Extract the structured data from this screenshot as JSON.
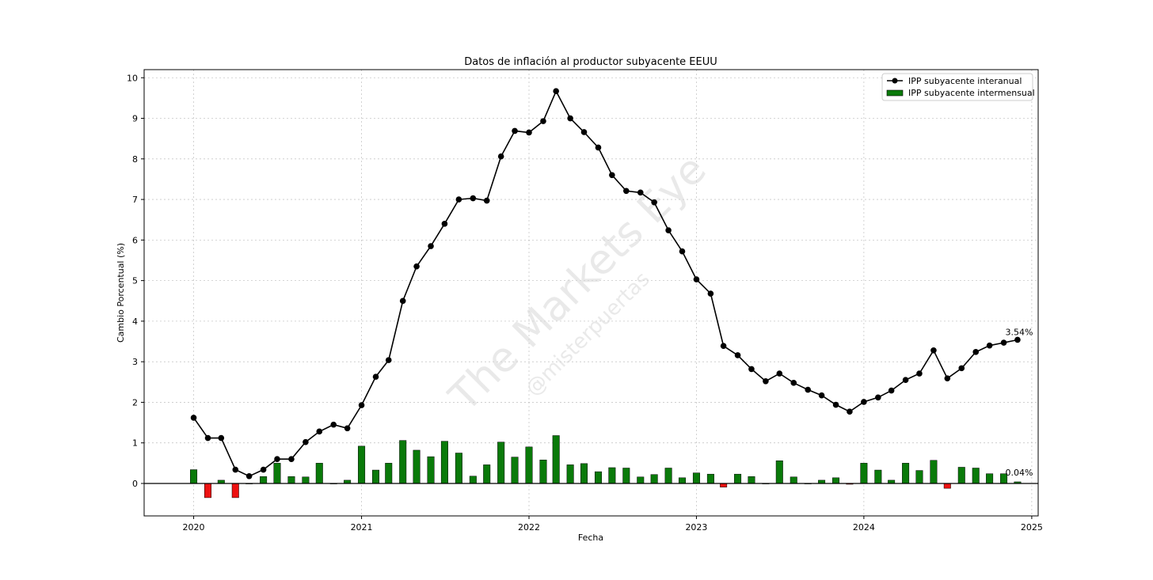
{
  "chart_data": {
    "type": "line",
    "title": "Datos de inflación al productor subyacente EEUU",
    "xlabel": "Fecha",
    "ylabel": "Cambio Porcentual (%)",
    "xlim": [
      "2019-09-15",
      "2025-01-15"
    ],
    "ylim": [
      -0.8,
      10.2
    ],
    "yticks": [
      0,
      1,
      2,
      3,
      4,
      5,
      6,
      7,
      8,
      9,
      10
    ],
    "xticks": [
      "2020",
      "2021",
      "2022",
      "2023",
      "2024",
      "2025"
    ],
    "grid": true,
    "legend_position": "top-right",
    "watermark": {
      "main": "The Markets Eye",
      "sub": "@misterpuertas"
    },
    "x": [
      "2020-01",
      "2020-02",
      "2020-03",
      "2020-04",
      "2020-05",
      "2020-06",
      "2020-07",
      "2020-08",
      "2020-09",
      "2020-10",
      "2020-11",
      "2020-12",
      "2021-01",
      "2021-02",
      "2021-03",
      "2021-04",
      "2021-05",
      "2021-06",
      "2021-07",
      "2021-08",
      "2021-09",
      "2021-10",
      "2021-11",
      "2021-12",
      "2022-01",
      "2022-02",
      "2022-03",
      "2022-04",
      "2022-05",
      "2022-06",
      "2022-07",
      "2022-08",
      "2022-09",
      "2022-10",
      "2022-11",
      "2022-12",
      "2023-01",
      "2023-02",
      "2023-03",
      "2023-04",
      "2023-05",
      "2023-06",
      "2023-07",
      "2023-08",
      "2023-09",
      "2023-10",
      "2023-11",
      "2023-12",
      "2024-01",
      "2024-02",
      "2024-03",
      "2024-04",
      "2024-05",
      "2024-06",
      "2024-07",
      "2024-08",
      "2024-09",
      "2024-10",
      "2024-11",
      "2024-12"
    ],
    "series": [
      {
        "name": "IPP subyacente interanual",
        "type": "line",
        "color": "#000000",
        "values": [
          1.62,
          1.12,
          1.12,
          0.34,
          0.18,
          0.34,
          0.6,
          0.6,
          1.02,
          1.28,
          1.45,
          1.36,
          1.93,
          2.63,
          3.04,
          4.5,
          5.35,
          5.85,
          6.4,
          7.0,
          7.03,
          6.97,
          8.06,
          8.69,
          8.65,
          8.93,
          9.67,
          9.0,
          8.66,
          8.28,
          7.6,
          7.21,
          7.17,
          6.93,
          6.24,
          5.72,
          5.03,
          4.68,
          3.39,
          3.16,
          2.82,
          2.52,
          2.71,
          2.48,
          2.31,
          2.17,
          1.94,
          1.77,
          2.01,
          2.12,
          2.29,
          2.55,
          2.71,
          3.28,
          2.59,
          2.84,
          3.24,
          3.4,
          3.47,
          3.54
        ]
      },
      {
        "name": "IPP subyacente intermensual",
        "type": "bar",
        "color": "#0a7a0a",
        "negative_color": "#ee1111",
        "values": [
          0.34,
          -0.35,
          0.08,
          -0.35,
          0.0,
          0.17,
          0.5,
          0.17,
          0.16,
          0.5,
          0.0,
          0.08,
          0.92,
          0.33,
          0.5,
          1.06,
          0.82,
          0.66,
          1.04,
          0.75,
          0.18,
          0.46,
          1.02,
          0.65,
          0.9,
          0.58,
          1.18,
          0.46,
          0.49,
          0.29,
          0.39,
          0.38,
          0.16,
          0.22,
          0.38,
          0.14,
          0.26,
          0.23,
          -0.09,
          0.23,
          0.17,
          0.0,
          0.56,
          0.16,
          0.0,
          0.08,
          0.14,
          -0.02,
          0.5,
          0.33,
          0.08,
          0.5,
          0.32,
          0.57,
          -0.12,
          0.4,
          0.38,
          0.24,
          0.24,
          0.04
        ]
      }
    ],
    "annotations": [
      "3.54%",
      "0.04%"
    ]
  }
}
